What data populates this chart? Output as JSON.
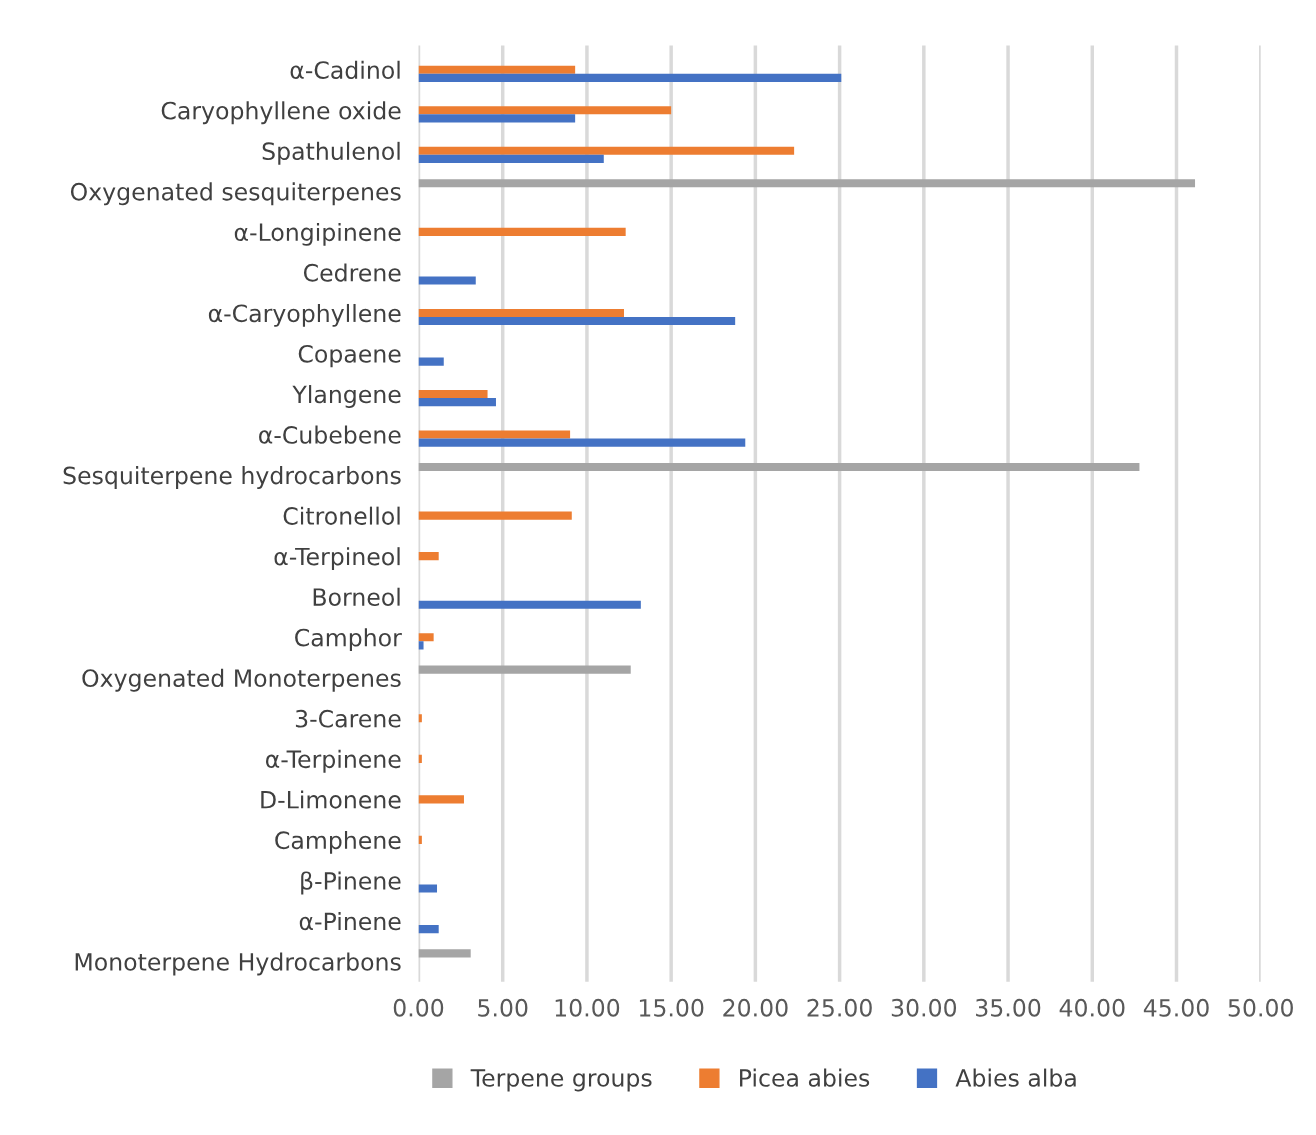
{
  "chart_data": {
    "type": "bar",
    "orientation": "horizontal",
    "categories": [
      "α-Cadinol",
      "Caryophyllene oxide",
      "Spathulenol",
      "Oxygenated sesquiterpenes",
      "α-Longipinene",
      "Cedrene",
      "α-Caryophyllene",
      "Copaene",
      "Ylangene",
      "α-Cubebene",
      "Sesquiterpene hydrocarbons",
      "Citronellol",
      "α-Terpineol",
      "Borneol",
      "Camphor",
      "Oxygenated Monoterpenes",
      "3-Carene",
      "α-Terpinene",
      "D-Limonene",
      "Camphene",
      "β-Pinene",
      "α-Pinene",
      "Monoterpene Hydrocarbons"
    ],
    "series": [
      {
        "name": "Terpene groups",
        "color": "#a5a5a5",
        "values": [
          null,
          null,
          null,
          46.1,
          null,
          null,
          null,
          null,
          null,
          null,
          42.8,
          null,
          null,
          null,
          null,
          12.6,
          null,
          null,
          null,
          null,
          null,
          null,
          3.1
        ]
      },
      {
        "name": "Picea abies",
        "color": "#ed7d31",
        "values": [
          9.3,
          15.0,
          22.3,
          null,
          12.3,
          null,
          12.2,
          null,
          4.1,
          9.0,
          null,
          9.1,
          1.2,
          null,
          0.9,
          null,
          0.2,
          0.2,
          2.7,
          0.2,
          null,
          null,
          null
        ]
      },
      {
        "name": "Abies alba",
        "color": "#4472c4",
        "values": [
          25.1,
          9.3,
          11.0,
          null,
          null,
          3.4,
          18.8,
          1.5,
          4.6,
          19.4,
          null,
          null,
          null,
          13.2,
          0.3,
          null,
          null,
          null,
          null,
          null,
          1.1,
          1.2,
          null
        ]
      }
    ],
    "xlim": [
      0,
      50
    ],
    "xticks": [
      {
        "value": 0,
        "label": "0.00"
      },
      {
        "value": 5,
        "label": "5.00"
      },
      {
        "value": 10,
        "label": "10.00"
      },
      {
        "value": 15,
        "label": "15.00"
      },
      {
        "value": 20,
        "label": "20.00"
      },
      {
        "value": 25,
        "label": "25.00"
      },
      {
        "value": 30,
        "label": "30.00"
      },
      {
        "value": 35,
        "label": "35.00"
      },
      {
        "value": 40,
        "label": "40.00"
      },
      {
        "value": 45,
        "label": "45.00"
      },
      {
        "value": 50,
        "label": "50.00"
      }
    ],
    "grid": "x",
    "legend": "bottom"
  }
}
